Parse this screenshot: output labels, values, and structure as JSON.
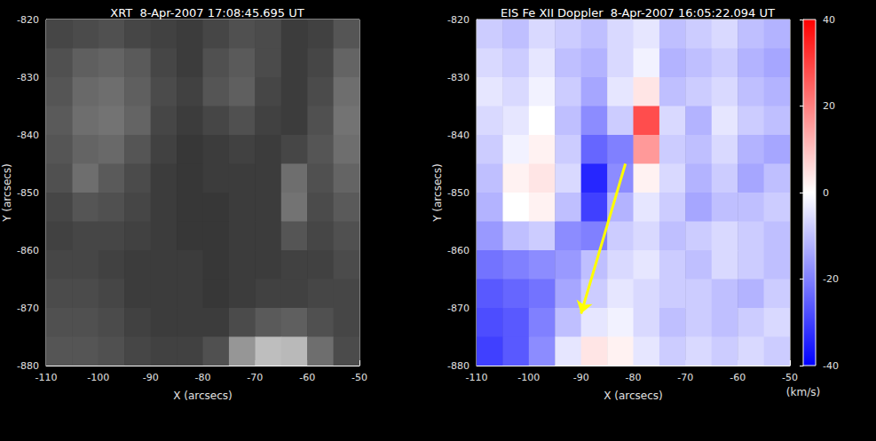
{
  "chart_data": [
    {
      "type": "heatmap",
      "title": "XRT  8-Apr-2007 17:08:45.695 UT",
      "xlabel": "X (arcsecs)",
      "ylabel": "Y (arcsecs)",
      "xlim": [
        -110,
        -50
      ],
      "xticks": [
        -110,
        -100,
        -90,
        -80,
        -70,
        -60,
        -50
      ],
      "ylim": [
        -880,
        -820
      ],
      "yticks": [
        -880,
        -870,
        -860,
        -850,
        -840,
        -830,
        -820
      ],
      "x_edges": [
        -110,
        -105,
        -100,
        -95,
        -90,
        -85,
        -80,
        -75,
        -70,
        -65,
        -60,
        -55,
        -50
      ],
      "y_edges": [
        -820,
        -825,
        -830,
        -835,
        -840,
        -845,
        -850,
        -855,
        -860,
        -865,
        -870,
        -875,
        -880
      ],
      "cells": [
        [
          70,
          75,
          80,
          70,
          65,
          60,
          70,
          80,
          75,
          60,
          65,
          85
        ],
        [
          80,
          95,
          100,
          90,
          70,
          60,
          80,
          90,
          75,
          60,
          70,
          100
        ],
        [
          85,
          105,
          110,
          95,
          75,
          65,
          85,
          95,
          70,
          60,
          75,
          110
        ],
        [
          90,
          110,
          115,
          100,
          70,
          60,
          70,
          80,
          65,
          60,
          80,
          115
        ],
        [
          85,
          100,
          105,
          85,
          65,
          55,
          60,
          65,
          60,
          70,
          85,
          110
        ],
        [
          80,
          110,
          90,
          75,
          60,
          55,
          60,
          60,
          60,
          110,
          80,
          100
        ],
        [
          70,
          85,
          80,
          70,
          60,
          55,
          55,
          60,
          60,
          115,
          75,
          90
        ],
        [
          65,
          70,
          70,
          65,
          60,
          55,
          55,
          60,
          60,
          85,
          70,
          80
        ],
        [
          70,
          70,
          65,
          60,
          60,
          60,
          55,
          60,
          60,
          65,
          65,
          75
        ],
        [
          75,
          75,
          70,
          60,
          60,
          60,
          55,
          60,
          65,
          65,
          70,
          70
        ],
        [
          80,
          80,
          75,
          65,
          60,
          60,
          60,
          75,
          90,
          95,
          80,
          70
        ],
        [
          85,
          85,
          80,
          70,
          65,
          65,
          80,
          150,
          190,
          185,
          110,
          75
        ]
      ],
      "color_range": [
        0,
        255
      ],
      "colormap": [
        "#000000",
        "#ffffff"
      ]
    },
    {
      "type": "heatmap",
      "title": "EIS Fe XII Doppler  8-Apr-2007 16:05:22.094 UT",
      "xlabel": "X (arcsecs)",
      "ylabel": "Y (arcsecs)",
      "xlim": [
        -110,
        -50
      ],
      "xticks": [
        -110,
        -100,
        -90,
        -80,
        -70,
        -60,
        -50
      ],
      "ylim": [
        -880,
        -820
      ],
      "yticks": [
        -880,
        -870,
        -860,
        -850,
        -840,
        -830,
        -820
      ],
      "x_edges": [
        -110,
        -105,
        -100,
        -95,
        -90,
        -85,
        -80,
        -75,
        -70,
        -65,
        -60,
        -55,
        -50
      ],
      "y_edges": [
        -820,
        -825,
        -830,
        -835,
        -840,
        -845,
        -850,
        -855,
        -860,
        -865,
        -870,
        -875,
        -880
      ],
      "cells": [
        [
          -8,
          -10,
          -6,
          -8,
          -10,
          -6,
          -4,
          -10,
          -8,
          -6,
          -10,
          -12
        ],
        [
          -6,
          -8,
          -4,
          -10,
          -12,
          -6,
          -2,
          -12,
          -10,
          -8,
          -12,
          -14
        ],
        [
          -4,
          -6,
          -2,
          -8,
          -14,
          -4,
          4,
          -10,
          -8,
          -6,
          -10,
          -12
        ],
        [
          -6,
          -4,
          0,
          -10,
          -18,
          -8,
          28,
          -6,
          -12,
          -4,
          -8,
          -10
        ],
        [
          -8,
          -2,
          2,
          -8,
          -24,
          -20,
          16,
          -8,
          -10,
          -6,
          -12,
          -14
        ],
        [
          -10,
          2,
          4,
          -6,
          -34,
          -18,
          2,
          -6,
          -12,
          -8,
          -14,
          -10
        ],
        [
          -12,
          0,
          2,
          -10,
          -30,
          -12,
          -4,
          -8,
          -14,
          -10,
          -10,
          -8
        ],
        [
          -16,
          -10,
          -8,
          -18,
          -20,
          -8,
          -6,
          -10,
          -8,
          -6,
          -8,
          -10
        ],
        [
          -22,
          -20,
          -18,
          -16,
          -10,
          -6,
          -4,
          -8,
          -10,
          -6,
          -8,
          -10
        ],
        [
          -26,
          -24,
          -22,
          -14,
          -8,
          -4,
          -6,
          -8,
          -8,
          -10,
          -12,
          -8
        ],
        [
          -28,
          -26,
          -20,
          -10,
          -4,
          -2,
          -6,
          -10,
          -8,
          -10,
          -8,
          -6
        ],
        [
          -30,
          -26,
          -18,
          -4,
          4,
          2,
          -4,
          -8,
          -6,
          -8,
          -6,
          -8
        ]
      ],
      "color_range": [
        -40,
        40
      ],
      "colormap": [
        "#0000ff",
        "#ffffff",
        "#ff0000"
      ],
      "colorbar": {
        "range": [
          -40,
          40
        ],
        "ticks": [
          -40,
          -20,
          0,
          20,
          40
        ],
        "label": "(km/s)"
      },
      "arrow": {
        "from": [
          -81.5,
          -845
        ],
        "to": [
          -90,
          -871
        ],
        "color": "#ffff00"
      }
    }
  ]
}
